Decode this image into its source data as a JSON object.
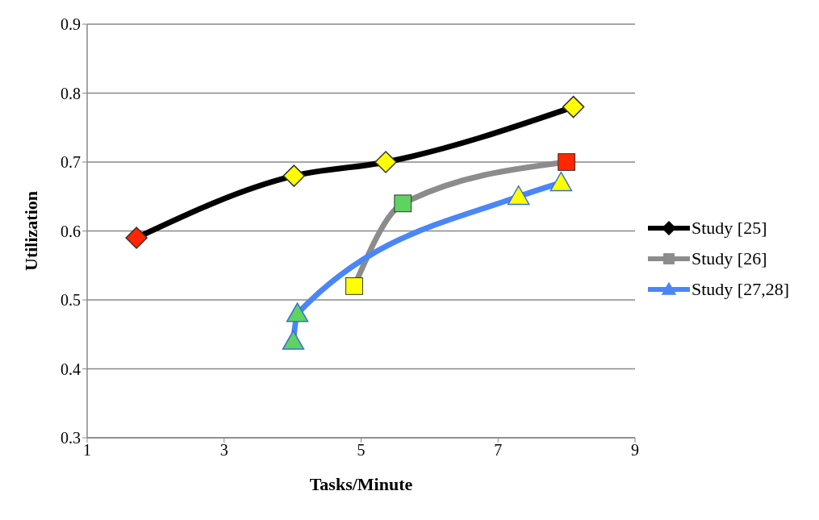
{
  "chart_data": {
    "type": "line",
    "xlabel": "Tasks/Minute",
    "ylabel": "Utilization",
    "xlim": [
      1,
      9
    ],
    "xticks": [
      1,
      3,
      5,
      7,
      9
    ],
    "ylim": [
      0.3,
      0.9
    ],
    "yticks": [
      0.3,
      0.4,
      0.5,
      0.6,
      0.7,
      0.8,
      0.9
    ],
    "grid": "y",
    "legend": "right",
    "series": [
      {
        "name": "Study [25]",
        "color": "#000000",
        "marker": "diamond",
        "x": [
          1.72,
          4.02,
          5.36,
          8.1
        ],
        "values": [
          0.59,
          0.68,
          0.7,
          0.78
        ],
        "colors": [
          "#ff2600",
          "#ffff00",
          "#ffff00",
          "#ffff00"
        ]
      },
      {
        "name": "Study [26]",
        "color": "#8c8c8c",
        "marker": "square",
        "x": [
          4.9,
          5.61,
          8.0
        ],
        "values": [
          0.52,
          0.64,
          0.7
        ],
        "colors": [
          "#ffff00",
          "#5fd35f",
          "#ff2600"
        ]
      },
      {
        "name": "Study [27,28]",
        "color": "#4a86f7",
        "marker": "triangle",
        "x": [
          4.01,
          4.07,
          7.3,
          7.92
        ],
        "values": [
          0.44,
          0.48,
          0.65,
          0.67
        ],
        "colors": [
          "#5fd35f",
          "#5fd35f",
          "#ffff00",
          "#ffff00"
        ]
      }
    ]
  }
}
